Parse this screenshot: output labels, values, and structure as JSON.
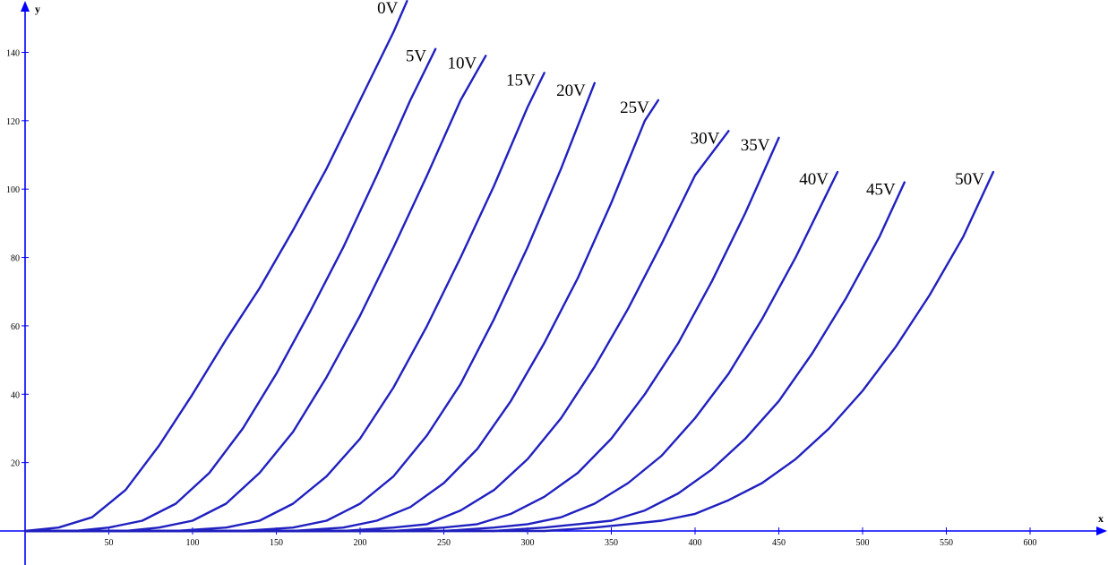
{
  "chart_data": {
    "type": "line",
    "title": "",
    "xlabel": "x",
    "ylabel": "y",
    "xlim": [
      -5,
      645
    ],
    "ylim": [
      -10,
      155
    ],
    "x_ticks": [
      "50",
      "100",
      "150",
      "200",
      "250",
      "300",
      "350",
      "400",
      "450",
      "500",
      "550",
      "600"
    ],
    "y_ticks": [
      "20",
      "40",
      "60",
      "80",
      "100",
      "120",
      "140"
    ],
    "grid": false,
    "line_color": "#2020c0",
    "axis_color": "#0000ff",
    "series": [
      {
        "name": "0V",
        "label": "0V",
        "points": [
          [
            0,
            0
          ],
          [
            20,
            1
          ],
          [
            40,
            4
          ],
          [
            60,
            12
          ],
          [
            80,
            25
          ],
          [
            100,
            40
          ],
          [
            120,
            56
          ],
          [
            140,
            71
          ],
          [
            160,
            88
          ],
          [
            180,
            106
          ],
          [
            200,
            126
          ],
          [
            220,
            146
          ],
          [
            228,
            155
          ]
        ]
      },
      {
        "name": "5V",
        "label": "5V",
        "points": [
          [
            0,
            0
          ],
          [
            30,
            0
          ],
          [
            50,
            1
          ],
          [
            70,
            3
          ],
          [
            90,
            8
          ],
          [
            110,
            17
          ],
          [
            130,
            30
          ],
          [
            150,
            46
          ],
          [
            170,
            64
          ],
          [
            190,
            83
          ],
          [
            210,
            104
          ],
          [
            230,
            126
          ],
          [
            245,
            141
          ]
        ]
      },
      {
        "name": "10V",
        "label": "10V",
        "points": [
          [
            0,
            0
          ],
          [
            60,
            0
          ],
          [
            80,
            1
          ],
          [
            100,
            3
          ],
          [
            120,
            8
          ],
          [
            140,
            17
          ],
          [
            160,
            29
          ],
          [
            180,
            45
          ],
          [
            200,
            63
          ],
          [
            220,
            83
          ],
          [
            240,
            104
          ],
          [
            260,
            126
          ],
          [
            275,
            139
          ]
        ]
      },
      {
        "name": "15V",
        "label": "15V",
        "points": [
          [
            0,
            0
          ],
          [
            90,
            0
          ],
          [
            120,
            1
          ],
          [
            140,
            3
          ],
          [
            160,
            8
          ],
          [
            180,
            16
          ],
          [
            200,
            27
          ],
          [
            220,
            42
          ],
          [
            240,
            60
          ],
          [
            260,
            80
          ],
          [
            280,
            101
          ],
          [
            300,
            124
          ],
          [
            310,
            134
          ]
        ]
      },
      {
        "name": "20V",
        "label": "20V",
        "points": [
          [
            0,
            0
          ],
          [
            130,
            0
          ],
          [
            160,
            1
          ],
          [
            180,
            3
          ],
          [
            200,
            8
          ],
          [
            220,
            16
          ],
          [
            240,
            28
          ],
          [
            260,
            43
          ],
          [
            280,
            62
          ],
          [
            300,
            83
          ],
          [
            320,
            106
          ],
          [
            340,
            131
          ]
        ]
      },
      {
        "name": "25V",
        "label": "25V",
        "points": [
          [
            0,
            0
          ],
          [
            160,
            0
          ],
          [
            190,
            1
          ],
          [
            210,
            3
          ],
          [
            230,
            7
          ],
          [
            250,
            14
          ],
          [
            270,
            24
          ],
          [
            290,
            38
          ],
          [
            310,
            55
          ],
          [
            330,
            74
          ],
          [
            350,
            96
          ],
          [
            370,
            120
          ],
          [
            378,
            126
          ]
        ]
      },
      {
        "name": "30V",
        "label": "30V",
        "points": [
          [
            0,
            0
          ],
          [
            190,
            0
          ],
          [
            220,
            1
          ],
          [
            240,
            2
          ],
          [
            260,
            6
          ],
          [
            280,
            12
          ],
          [
            300,
            21
          ],
          [
            320,
            33
          ],
          [
            340,
            48
          ],
          [
            360,
            65
          ],
          [
            380,
            84
          ],
          [
            400,
            104
          ],
          [
            420,
            117
          ]
        ]
      },
      {
        "name": "35V",
        "label": "35V",
        "points": [
          [
            0,
            0
          ],
          [
            220,
            0
          ],
          [
            250,
            1
          ],
          [
            270,
            2
          ],
          [
            290,
            5
          ],
          [
            310,
            10
          ],
          [
            330,
            17
          ],
          [
            350,
            27
          ],
          [
            370,
            40
          ],
          [
            390,
            55
          ],
          [
            410,
            73
          ],
          [
            430,
            93
          ],
          [
            450,
            115
          ]
        ]
      },
      {
        "name": "40V",
        "label": "40V",
        "points": [
          [
            0,
            0
          ],
          [
            250,
            0
          ],
          [
            280,
            1
          ],
          [
            300,
            2
          ],
          [
            320,
            4
          ],
          [
            340,
            8
          ],
          [
            360,
            14
          ],
          [
            380,
            22
          ],
          [
            400,
            33
          ],
          [
            420,
            46
          ],
          [
            440,
            62
          ],
          [
            460,
            80
          ],
          [
            480,
            100
          ],
          [
            485,
            105
          ]
        ]
      },
      {
        "name": "45V",
        "label": "45V",
        "points": [
          [
            0,
            0
          ],
          [
            280,
            0
          ],
          [
            310,
            1
          ],
          [
            330,
            2
          ],
          [
            350,
            3
          ],
          [
            370,
            6
          ],
          [
            390,
            11
          ],
          [
            410,
            18
          ],
          [
            430,
            27
          ],
          [
            450,
            38
          ],
          [
            470,
            52
          ],
          [
            490,
            68
          ],
          [
            510,
            86
          ],
          [
            525,
            102
          ]
        ]
      },
      {
        "name": "50V",
        "label": "50V",
        "points": [
          [
            0,
            0
          ],
          [
            310,
            0
          ],
          [
            340,
            1
          ],
          [
            360,
            2
          ],
          [
            380,
            3
          ],
          [
            400,
            5
          ],
          [
            420,
            9
          ],
          [
            440,
            14
          ],
          [
            460,
            21
          ],
          [
            480,
            30
          ],
          [
            500,
            41
          ],
          [
            520,
            54
          ],
          [
            540,
            69
          ],
          [
            560,
            86
          ],
          [
            578,
            105
          ]
        ]
      }
    ]
  }
}
